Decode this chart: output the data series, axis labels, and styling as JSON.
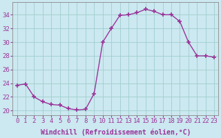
{
  "x": [
    0,
    1,
    2,
    3,
    4,
    5,
    6,
    7,
    8,
    9,
    10,
    11,
    12,
    13,
    14,
    15,
    16,
    17,
    18,
    19,
    20,
    21,
    22,
    23
  ],
  "y": [
    23.7,
    23.9,
    22.0,
    21.3,
    20.9,
    20.8,
    20.3,
    20.1,
    20.2,
    22.5,
    30.0,
    32.0,
    33.9,
    34.0,
    34.3,
    34.8,
    34.5,
    34.0,
    34.0,
    33.0,
    30.0,
    28.0,
    28.0,
    27.8
  ],
  "line_color": "#993399",
  "marker": "+",
  "marker_size": 4,
  "marker_linewidth": 1.2,
  "linewidth": 1.0,
  "xlabel": "Windchill (Refroidissement éolien,°C)",
  "yticks": [
    20,
    22,
    24,
    26,
    28,
    30,
    32,
    34
  ],
  "ylim": [
    19.3,
    35.8
  ],
  "xlim": [
    -0.5,
    23.5
  ],
  "bg_color": "#cce8f0",
  "grid_color": "#9ecece",
  "tick_color": "#993399",
  "xlabel_color": "#993399",
  "xlabel_fontsize": 7,
  "tick_fontsize": 6.5
}
